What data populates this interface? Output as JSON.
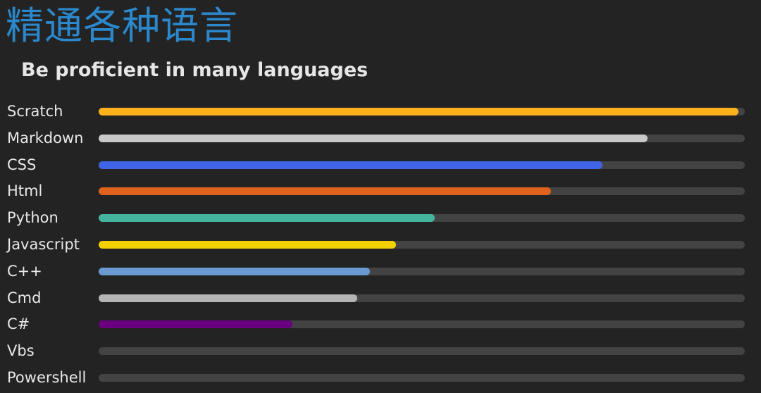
{
  "chart_data": {
    "type": "bar",
    "orientation": "horizontal",
    "title": "精通各种语言",
    "subtitle": "Be proficient in many languages",
    "xlim": [
      0,
      100
    ],
    "grid": false,
    "categories": [
      "Scratch",
      "Markdown",
      "CSS",
      "Html",
      "Python",
      "Javascript",
      "C++",
      "Cmd",
      "C#",
      "Vbs",
      "Powershell"
    ],
    "values": [
      99,
      85,
      78,
      70,
      52,
      46,
      42,
      40,
      30,
      0,
      0
    ],
    "colors": [
      "#fbb11a",
      "#c8c8c8",
      "#3f64e6",
      "#e0621e",
      "#45b49e",
      "#f4d000",
      "#6a9ad2",
      "#b4b4b4",
      "#6a0080",
      "#434343",
      "#434343"
    ],
    "track_color": "#434343"
  }
}
